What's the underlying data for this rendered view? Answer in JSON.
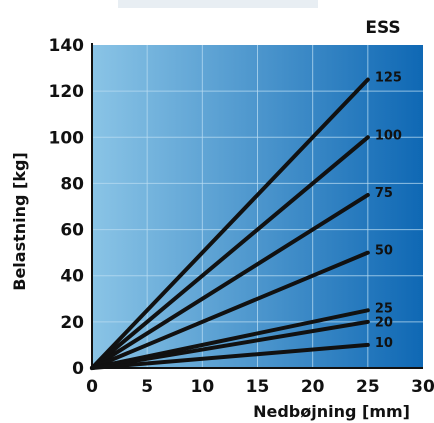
{
  "chart_data": {
    "type": "line",
    "title": "ESS",
    "xlabel": "Nedbøjning [mm]",
    "ylabel": "Belastning [kg]",
    "xlim": [
      0,
      30
    ],
    "ylim": [
      0,
      140
    ],
    "xticks": [
      0,
      5,
      10,
      15,
      20,
      25,
      30
    ],
    "yticks": [
      0,
      20,
      40,
      60,
      80,
      100,
      120,
      140
    ],
    "grid": true,
    "series": [
      {
        "name": "125",
        "x": [
          0,
          25
        ],
        "y": [
          0,
          125
        ]
      },
      {
        "name": "100",
        "x": [
          0,
          25
        ],
        "y": [
          0,
          100
        ]
      },
      {
        "name": "75",
        "x": [
          0,
          25
        ],
        "y": [
          0,
          75
        ]
      },
      {
        "name": "50",
        "x": [
          0,
          25
        ],
        "y": [
          0,
          50
        ]
      },
      {
        "name": "25",
        "x": [
          0,
          25
        ],
        "y": [
          0,
          25
        ]
      },
      {
        "name": "20",
        "x": [
          0,
          25
        ],
        "y": [
          0,
          20
        ]
      },
      {
        "name": "10",
        "x": [
          0,
          25
        ],
        "y": [
          0,
          10
        ]
      }
    ],
    "colors": {
      "background_left": "#8ac4e6",
      "background_right": "#0f68b4",
      "gridline": "#b9dcf2",
      "series_line": "#111111"
    }
  }
}
